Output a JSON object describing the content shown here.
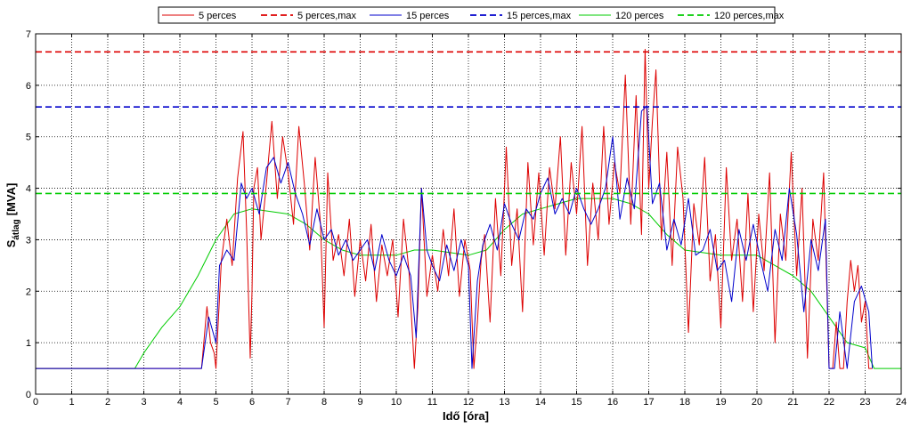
{
  "chart_data": {
    "type": "line",
    "xlabel": "Idő [óra]",
    "ylabel": {
      "main": "S",
      "sub": "átlag",
      "unit": "[MVA]"
    },
    "xlim": [
      0,
      24
    ],
    "ylim": [
      0,
      7
    ],
    "xticks": [
      0,
      1,
      2,
      3,
      4,
      5,
      6,
      7,
      8,
      9,
      10,
      11,
      12,
      13,
      14,
      15,
      16,
      17,
      18,
      19,
      20,
      21,
      22,
      23,
      24
    ],
    "yticks": [
      0,
      1,
      2,
      3,
      4,
      5,
      6,
      7
    ],
    "grid": true,
    "legend_position": "top",
    "series": [
      {
        "name": "5 perces",
        "color": "#dd0000",
        "style": "solid",
        "x": [
          0,
          4.6,
          4.75,
          4.85,
          4.95,
          5.0,
          5.05,
          5.15,
          5.3,
          5.45,
          5.6,
          5.75,
          5.85,
          5.95,
          6.0,
          6.05,
          6.15,
          6.25,
          6.4,
          6.55,
          6.7,
          6.85,
          7.0,
          7.15,
          7.3,
          7.45,
          7.6,
          7.75,
          7.9,
          8.0,
          8.1,
          8.25,
          8.4,
          8.55,
          8.7,
          8.85,
          9.0,
          9.15,
          9.3,
          9.45,
          9.6,
          9.75,
          9.9,
          10.05,
          10.2,
          10.35,
          10.5,
          10.6,
          10.7,
          10.85,
          11.0,
          11.15,
          11.3,
          11.45,
          11.6,
          11.75,
          11.9,
          12.05,
          12.15,
          12.25,
          12.35,
          12.45,
          12.6,
          12.75,
          12.9,
          13.05,
          13.2,
          13.35,
          13.5,
          13.65,
          13.8,
          13.95,
          14.1,
          14.25,
          14.4,
          14.55,
          14.7,
          14.85,
          15.0,
          15.15,
          15.3,
          15.45,
          15.6,
          15.75,
          15.9,
          16.05,
          16.2,
          16.35,
          16.5,
          16.65,
          16.8,
          16.9,
          17.0,
          17.1,
          17.2,
          17.35,
          17.5,
          17.65,
          17.8,
          17.95,
          18.1,
          18.25,
          18.4,
          18.55,
          18.7,
          18.85,
          19.0,
          19.15,
          19.3,
          19.45,
          19.6,
          19.75,
          19.9,
          20.05,
          20.2,
          20.35,
          20.5,
          20.65,
          20.8,
          20.95,
          21.1,
          21.25,
          21.4,
          21.55,
          21.7,
          21.85,
          22.0,
          22.1,
          22.2,
          22.3,
          22.4,
          22.5,
          22.6,
          22.7,
          22.8,
          22.9,
          23.0,
          23.1,
          23.2
        ],
        "y": [
          0.5,
          0.5,
          1.7,
          1.0,
          0.8,
          0.5,
          1.2,
          2.6,
          3.4,
          2.5,
          4.2,
          5.1,
          3.2,
          0.7,
          2.0,
          4.0,
          4.4,
          3.0,
          4.1,
          5.3,
          3.8,
          5.0,
          4.3,
          3.3,
          5.2,
          4.1,
          2.8,
          4.6,
          3.3,
          1.3,
          4.3,
          2.6,
          3.1,
          2.3,
          3.4,
          1.9,
          3.0,
          2.2,
          3.3,
          1.8,
          2.9,
          2.3,
          3.0,
          1.5,
          3.4,
          2.4,
          0.5,
          1.7,
          4.0,
          1.9,
          2.7,
          2.0,
          3.2,
          2.3,
          3.6,
          1.9,
          3.0,
          2.4,
          0.5,
          1.4,
          2.6,
          3.1,
          1.4,
          3.8,
          2.3,
          4.8,
          2.5,
          3.6,
          1.6,
          4.5,
          2.9,
          4.3,
          2.7,
          4.4,
          3.6,
          5.0,
          2.7,
          4.5,
          3.5,
          5.2,
          2.5,
          4.1,
          3.0,
          5.2,
          3.3,
          4.5,
          3.9,
          6.2,
          3.3,
          5.8,
          3.1,
          6.7,
          4.0,
          5.3,
          6.3,
          3.0,
          4.7,
          2.5,
          4.8,
          3.8,
          1.2,
          3.7,
          2.9,
          4.6,
          2.2,
          3.1,
          1.3,
          4.4,
          2.6,
          3.4,
          1.8,
          3.9,
          1.6,
          3.5,
          2.4,
          4.3,
          1.0,
          3.5,
          2.6,
          4.7,
          2.3,
          4.0,
          0.7,
          3.4,
          2.6,
          4.3,
          0.5,
          0.5,
          1.4,
          0.5,
          0.5,
          1.8,
          2.6,
          2.0,
          2.5,
          1.4,
          1.8,
          0.5,
          0.5
        ]
      },
      {
        "name": "5 perces,max",
        "color": "#dd0000",
        "style": "dashed",
        "x": [
          0,
          24
        ],
        "y": [
          6.65,
          6.65
        ]
      },
      {
        "name": "15 perces",
        "color": "#0000cc",
        "style": "solid",
        "x": [
          0,
          4.6,
          4.8,
          5.0,
          5.1,
          5.3,
          5.5,
          5.7,
          5.85,
          6.0,
          6.2,
          6.4,
          6.6,
          6.8,
          7.0,
          7.2,
          7.4,
          7.6,
          7.8,
          8.0,
          8.2,
          8.4,
          8.6,
          8.8,
          9.0,
          9.2,
          9.4,
          9.6,
          9.8,
          10.0,
          10.2,
          10.4,
          10.55,
          10.7,
          10.85,
          11.0,
          11.2,
          11.4,
          11.6,
          11.8,
          12.0,
          12.1,
          12.25,
          12.4,
          12.6,
          12.8,
          13.0,
          13.2,
          13.4,
          13.6,
          13.8,
          14.0,
          14.2,
          14.4,
          14.6,
          14.8,
          15.0,
          15.2,
          15.4,
          15.6,
          15.8,
          16.0,
          16.2,
          16.4,
          16.6,
          16.8,
          16.95,
          17.1,
          17.3,
          17.5,
          17.7,
          17.9,
          18.1,
          18.3,
          18.5,
          18.7,
          18.9,
          19.1,
          19.3,
          19.5,
          19.7,
          19.9,
          20.1,
          20.3,
          20.5,
          20.7,
          20.9,
          21.1,
          21.3,
          21.5,
          21.7,
          21.9,
          22.0,
          22.15,
          22.3,
          22.5,
          22.7,
          22.9,
          23.1,
          23.2
        ],
        "y": [
          0.5,
          0.5,
          1.5,
          1.0,
          2.5,
          2.8,
          2.6,
          4.1,
          3.8,
          4.0,
          3.5,
          4.4,
          4.6,
          4.1,
          4.5,
          3.9,
          3.5,
          2.9,
          3.6,
          3.0,
          3.2,
          2.7,
          3.0,
          2.6,
          2.8,
          3.0,
          2.4,
          3.1,
          2.6,
          2.3,
          2.7,
          2.3,
          1.1,
          4.0,
          2.8,
          2.5,
          2.2,
          2.9,
          2.4,
          3.0,
          2.5,
          0.5,
          2.2,
          2.9,
          3.3,
          2.8,
          3.7,
          3.3,
          3.0,
          3.6,
          3.4,
          3.9,
          4.2,
          3.5,
          3.8,
          3.5,
          4.0,
          3.6,
          3.3,
          3.6,
          4.0,
          5.0,
          3.4,
          4.2,
          3.6,
          5.5,
          5.6,
          3.7,
          4.1,
          2.8,
          3.4,
          2.9,
          3.8,
          2.7,
          2.8,
          3.2,
          2.4,
          2.6,
          1.8,
          3.2,
          2.6,
          3.3,
          2.6,
          2.0,
          3.2,
          2.6,
          4.0,
          3.1,
          1.6,
          3.0,
          2.4,
          3.4,
          0.5,
          0.5,
          1.6,
          0.5,
          1.8,
          2.1,
          1.6,
          0.5
        ]
      },
      {
        "name": "15 perces,max",
        "color": "#0000cc",
        "style": "dashed",
        "x": [
          0,
          24
        ],
        "y": [
          5.58,
          5.58
        ]
      },
      {
        "name": "120 perces",
        "color": "#00cc00",
        "style": "solid",
        "x": [
          0,
          2.75,
          3.0,
          3.5,
          4.0,
          4.5,
          5.0,
          5.5,
          6.0,
          6.5,
          7.0,
          7.5,
          8.0,
          8.5,
          9.0,
          9.5,
          10.0,
          10.5,
          11.0,
          11.5,
          12.0,
          12.5,
          13.0,
          13.5,
          14.0,
          14.5,
          15.0,
          15.5,
          16.0,
          16.5,
          17.0,
          17.5,
          18.0,
          18.5,
          19.0,
          19.5,
          20.0,
          20.5,
          21.0,
          21.5,
          22.0,
          22.5,
          23.0,
          23.25,
          24
        ],
        "y": [
          0.5,
          0.5,
          0.8,
          1.3,
          1.7,
          2.3,
          3.0,
          3.5,
          3.6,
          3.55,
          3.5,
          3.3,
          3.0,
          2.8,
          2.7,
          2.7,
          2.7,
          2.8,
          2.8,
          2.75,
          2.7,
          2.8,
          3.2,
          3.5,
          3.6,
          3.7,
          3.8,
          3.8,
          3.8,
          3.7,
          3.5,
          3.1,
          2.8,
          2.75,
          2.7,
          2.7,
          2.7,
          2.5,
          2.3,
          2.0,
          1.5,
          1.0,
          0.9,
          0.5,
          0.5
        ]
      },
      {
        "name": "120 perces,max",
        "color": "#00cc00",
        "style": "dashed",
        "x": [
          0,
          24
        ],
        "y": [
          3.9,
          3.9
        ]
      }
    ]
  }
}
